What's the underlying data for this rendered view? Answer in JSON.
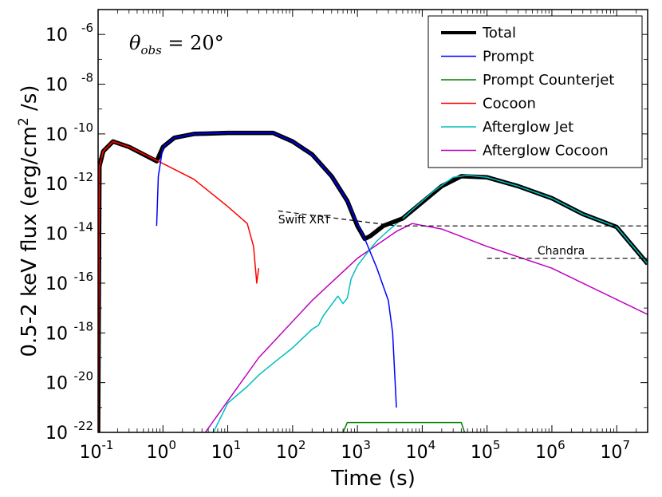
{
  "chart_data": {
    "type": "line",
    "xlabel": "Time (s)",
    "ylabel_parts": {
      "pre": "0.5-2 keV flux (erg/cm",
      "sup": "2",
      "post": " /s)"
    },
    "x_scale": "log",
    "y_scale": "log",
    "xlim": [
      0.1,
      30000000
    ],
    "ylim": [
      1e-22,
      1e-05
    ],
    "x_ticks": [
      {
        "value": 0.1,
        "base": "10",
        "exp": "-1"
      },
      {
        "value": 1,
        "base": "10",
        "exp": "0"
      },
      {
        "value": 10,
        "base": "10",
        "exp": "1"
      },
      {
        "value": 100,
        "base": "10",
        "exp": "2"
      },
      {
        "value": 1000,
        "base": "10",
        "exp": "3"
      },
      {
        "value": 10000,
        "base": "10",
        "exp": "4"
      },
      {
        "value": 100000,
        "base": "10",
        "exp": "5"
      },
      {
        "value": 1000000,
        "base": "10",
        "exp": "6"
      },
      {
        "value": 10000000,
        "base": "10",
        "exp": "7"
      }
    ],
    "y_ticks": [
      {
        "value": 1e-22,
        "base": "10",
        "exp": "-22"
      },
      {
        "value": 1e-20,
        "base": "10",
        "exp": "-20"
      },
      {
        "value": 1e-18,
        "base": "10",
        "exp": "-18"
      },
      {
        "value": 1e-16,
        "base": "10",
        "exp": "-16"
      },
      {
        "value": 1e-14,
        "base": "10",
        "exp": "-14"
      },
      {
        "value": 1e-12,
        "base": "10",
        "exp": "-12"
      },
      {
        "value": 1e-10,
        "base": "10",
        "exp": "-10"
      },
      {
        "value": 1e-08,
        "base": "10",
        "exp": "-8"
      },
      {
        "value": 1e-06,
        "base": "10",
        "exp": "-6"
      }
    ],
    "grid": false,
    "legend_position": "top-right",
    "annotation_theta": {
      "symbol": "θ",
      "sub": "obs",
      "rest": " = 20°"
    },
    "series": [
      {
        "name": "Prompt Counterjet",
        "color": "#008000",
        "width": 1.5,
        "key": "counterjet",
        "points": [
          [
            600,
            1e-22
          ],
          [
            700,
            2.5e-22
          ],
          [
            40000,
            2.5e-22
          ],
          [
            45000,
            1e-22
          ]
        ]
      },
      {
        "name": "Afterglow Cocoon",
        "color": "#bf00bf",
        "width": 1.5,
        "key": "ag_cocoon",
        "points": [
          [
            4.5,
            1e-22
          ],
          [
            30,
            1e-19
          ],
          [
            200,
            2e-17
          ],
          [
            1000,
            1e-15
          ],
          [
            4000,
            1.2e-14
          ],
          [
            7000,
            2.5e-14
          ],
          [
            20000,
            1.5e-14
          ],
          [
            100000,
            3e-15
          ],
          [
            1000000,
            4e-16
          ],
          [
            30000000,
            5.5e-18
          ]
        ]
      },
      {
        "name": "Afterglow Jet",
        "color": "#00bfbf",
        "width": 1.5,
        "key": "ag_jet",
        "points": [
          [
            6,
            1e-22
          ],
          [
            10,
            1.5e-21
          ],
          [
            20,
            7e-21
          ],
          [
            30,
            2e-20
          ],
          [
            50,
            6e-20
          ],
          [
            100,
            2.5e-19
          ],
          [
            200,
            1.4e-18
          ],
          [
            250,
            2e-18
          ],
          [
            300,
            5e-18
          ],
          [
            500,
            3e-17
          ],
          [
            600,
            1.5e-17
          ],
          [
            700,
            2.5e-17
          ],
          [
            800,
            1.5e-16
          ],
          [
            1000,
            5e-16
          ],
          [
            1500,
            2e-15
          ],
          [
            2000,
            5e-15
          ],
          [
            3000,
            1.3e-14
          ],
          [
            5000,
            4e-14
          ],
          [
            8000,
            1.2e-13
          ],
          [
            15000,
            5e-13
          ],
          [
            30000,
            1.8e-12
          ],
          [
            50000,
            2.2e-12
          ],
          [
            100000,
            1.8e-12
          ],
          [
            300000,
            8e-13
          ],
          [
            1000000,
            2.6e-13
          ],
          [
            3000000,
            6e-14
          ],
          [
            10000000,
            1.8e-14
          ],
          [
            30000000,
            6e-16
          ]
        ]
      },
      {
        "name": "Total",
        "color": "#000000",
        "width": 4,
        "key": "total",
        "points": [
          [
            0.1,
            1e-22
          ],
          [
            0.105,
            5e-12
          ],
          [
            0.12,
            2e-11
          ],
          [
            0.17,
            5e-11
          ],
          [
            0.3,
            3e-11
          ],
          [
            0.8,
            8e-12
          ],
          [
            1,
            3e-11
          ],
          [
            1.5,
            7e-11
          ],
          [
            3,
            1e-10
          ],
          [
            10,
            1.1e-10
          ],
          [
            50,
            1.1e-10
          ],
          [
            100,
            5e-11
          ],
          [
            200,
            1.5e-11
          ],
          [
            400,
            2e-12
          ],
          [
            700,
            2e-13
          ],
          [
            1000,
            2e-14
          ],
          [
            1300,
            6e-15
          ],
          [
            1600,
            8e-15
          ],
          [
            2500,
            2e-14
          ],
          [
            5000,
            4e-14
          ],
          [
            10000,
            1.8e-13
          ],
          [
            20000,
            8e-13
          ],
          [
            40000,
            2e-12
          ],
          [
            100000,
            1.8e-12
          ],
          [
            300000,
            8e-13
          ],
          [
            1000000,
            2.6e-13
          ],
          [
            3000000,
            6e-14
          ],
          [
            10000000,
            1.8e-14
          ],
          [
            30000000,
            6e-16
          ]
        ]
      },
      {
        "name": "Cocoon",
        "color": "#ff0000",
        "width": 1.5,
        "key": "cocoon",
        "points": [
          [
            0.1,
            1e-22
          ],
          [
            0.105,
            5e-12
          ],
          [
            0.12,
            2e-11
          ],
          [
            0.17,
            5e-11
          ],
          [
            0.3,
            3e-11
          ],
          [
            0.85,
            8e-12
          ],
          [
            3,
            1.5e-12
          ],
          [
            10,
            1.2e-13
          ],
          [
            20,
            2.5e-14
          ],
          [
            25,
            3e-15
          ],
          [
            28,
            1e-16
          ],
          [
            30,
            4e-16
          ]
        ]
      },
      {
        "name": "Prompt",
        "color": "#0000ff",
        "width": 1.5,
        "key": "prompt",
        "points": [
          [
            0.8,
            2e-14
          ],
          [
            0.85,
            2e-12
          ],
          [
            1,
            3e-11
          ],
          [
            1.5,
            7e-11
          ],
          [
            3,
            1e-10
          ],
          [
            10,
            1.1e-10
          ],
          [
            50,
            1.1e-10
          ],
          [
            100,
            5e-11
          ],
          [
            200,
            1.5e-11
          ],
          [
            400,
            2e-12
          ],
          [
            700,
            2e-13
          ],
          [
            1000,
            2.5e-14
          ],
          [
            1300,
            6e-15
          ],
          [
            2000,
            4e-16
          ],
          [
            3000,
            2e-17
          ],
          [
            3500,
            1e-18
          ],
          [
            4000,
            1e-21
          ]
        ]
      }
    ],
    "legend_order": [
      "total",
      "prompt",
      "counterjet",
      "cocoon",
      "ag_jet",
      "ag_cocoon"
    ],
    "reference_lines": [
      {
        "label": "Swift XRT",
        "key": "swift",
        "points": [
          [
            60,
            8e-14
          ],
          [
            4000,
            2e-14
          ],
          [
            30000000,
            2e-14
          ]
        ],
        "label_at": [
          60,
          2.5e-14
        ]
      },
      {
        "label": "Chandra",
        "key": "chandra",
        "points": [
          [
            100000,
            1e-15
          ],
          [
            30000000,
            1e-15
          ]
        ],
        "label_at": [
          600000,
          1.4e-15
        ]
      }
    ]
  }
}
